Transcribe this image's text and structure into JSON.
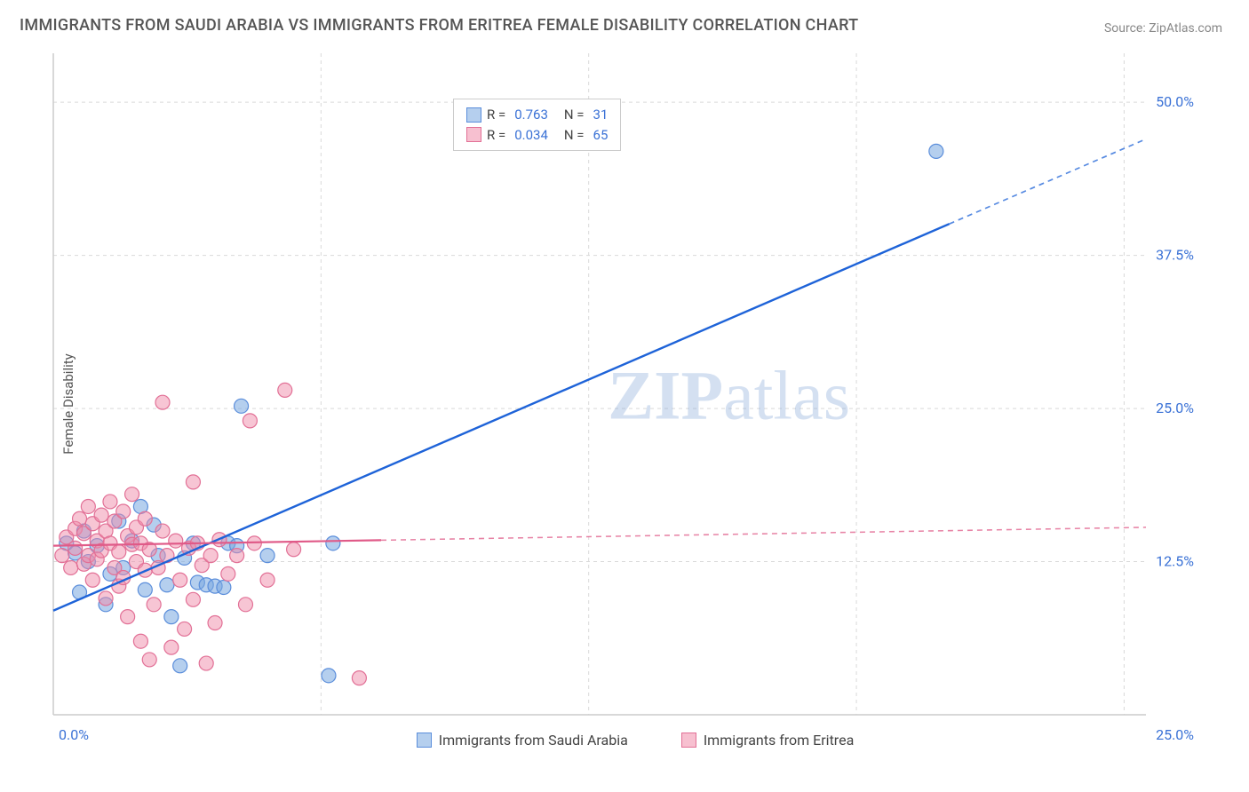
{
  "title": "IMMIGRANTS FROM SAUDI ARABIA VS IMMIGRANTS FROM ERITREA FEMALE DISABILITY CORRELATION CHART",
  "source": "Source: ZipAtlas.com",
  "ylabel": "Female Disability",
  "watermark": "ZIPatlas",
  "type": "scatter",
  "background_color": "#ffffff",
  "grid_color": "#d9d9d9",
  "axis_color": "#cccccc",
  "tick_color": "#3b72d6",
  "tick_fontsize": 16,
  "label_fontsize": 15,
  "title_fontsize": 18,
  "xlim": [
    0,
    25
  ],
  "ylim": [
    0,
    54
  ],
  "ytick_positions": [
    12.5,
    25.0,
    37.5,
    50.0
  ],
  "ytick_labels": [
    "12.5%",
    "25.0%",
    "37.5%",
    "50.0%"
  ],
  "xtick_positions": [
    0,
    25
  ],
  "xtick_labels": [
    "0.0%",
    "25.0%"
  ],
  "xgrid_rel": [
    0.245,
    0.49,
    0.735,
    0.98
  ],
  "stats": {
    "blue": {
      "R": "0.763",
      "N": "31"
    },
    "pink": {
      "R": "0.034",
      "N": "65"
    }
  },
  "series": [
    {
      "name": "Immigrants from Saudi Arabia",
      "marker_color": "rgba(120,168,224,0.55)",
      "marker_stroke": "#5b8edb",
      "marker_radius": 8,
      "line_color": "#1e63d8",
      "line_width": 2.4,
      "line_p1": [
        0.0,
        8.5
      ],
      "line_p2": [
        25.0,
        47.0
      ],
      "line_solid_xmax": 20.5,
      "points": [
        [
          0.3,
          14.0
        ],
        [
          0.5,
          13.2
        ],
        [
          0.7,
          15.0
        ],
        [
          0.6,
          10.0
        ],
        [
          0.8,
          12.5
        ],
        [
          1.0,
          13.8
        ],
        [
          1.2,
          9.0
        ],
        [
          1.3,
          11.5
        ],
        [
          1.5,
          15.8
        ],
        [
          1.6,
          12.0
        ],
        [
          1.8,
          14.2
        ],
        [
          2.0,
          17.0
        ],
        [
          2.1,
          10.2
        ],
        [
          2.3,
          15.5
        ],
        [
          2.4,
          13.0
        ],
        [
          2.6,
          10.6
        ],
        [
          2.7,
          8.0
        ],
        [
          2.9,
          4.0
        ],
        [
          3.0,
          12.8
        ],
        [
          3.2,
          14.0
        ],
        [
          3.3,
          10.8
        ],
        [
          3.5,
          10.6
        ],
        [
          3.7,
          10.5
        ],
        [
          3.9,
          10.4
        ],
        [
          4.0,
          14.0
        ],
        [
          4.2,
          13.8
        ],
        [
          4.3,
          25.2
        ],
        [
          4.9,
          13.0
        ],
        [
          6.3,
          3.2
        ],
        [
          6.4,
          14.0
        ],
        [
          20.2,
          46.0
        ]
      ]
    },
    {
      "name": "Immigrants from Eritrea",
      "marker_color": "rgba(240,140,170,0.50)",
      "marker_stroke": "#e27096",
      "marker_radius": 8,
      "line_color": "#e05a88",
      "line_width": 2.2,
      "line_p1": [
        0.0,
        13.8
      ],
      "line_p2": [
        25.0,
        15.3
      ],
      "line_solid_xmax": 7.5,
      "points": [
        [
          0.2,
          13.0
        ],
        [
          0.3,
          14.5
        ],
        [
          0.4,
          12.0
        ],
        [
          0.5,
          15.2
        ],
        [
          0.5,
          13.6
        ],
        [
          0.6,
          16.0
        ],
        [
          0.7,
          14.8
        ],
        [
          0.7,
          12.3
        ],
        [
          0.8,
          13.0
        ],
        [
          0.8,
          17.0
        ],
        [
          0.9,
          15.6
        ],
        [
          0.9,
          11.0
        ],
        [
          1.0,
          14.2
        ],
        [
          1.0,
          12.7
        ],
        [
          1.1,
          16.3
        ],
        [
          1.1,
          13.4
        ],
        [
          1.2,
          15.0
        ],
        [
          1.2,
          9.5
        ],
        [
          1.3,
          14.0
        ],
        [
          1.3,
          17.4
        ],
        [
          1.4,
          12.0
        ],
        [
          1.4,
          15.8
        ],
        [
          1.5,
          13.3
        ],
        [
          1.5,
          10.5
        ],
        [
          1.6,
          11.2
        ],
        [
          1.6,
          16.6
        ],
        [
          1.7,
          14.6
        ],
        [
          1.7,
          8.0
        ],
        [
          1.8,
          13.9
        ],
        [
          1.8,
          18.0
        ],
        [
          1.9,
          12.5
        ],
        [
          1.9,
          15.3
        ],
        [
          2.0,
          6.0
        ],
        [
          2.0,
          14.0
        ],
        [
          2.1,
          11.8
        ],
        [
          2.1,
          16.0
        ],
        [
          2.2,
          4.5
        ],
        [
          2.2,
          13.5
        ],
        [
          2.3,
          9.0
        ],
        [
          2.4,
          12.0
        ],
        [
          2.5,
          15.0
        ],
        [
          2.5,
          25.5
        ],
        [
          2.6,
          13.0
        ],
        [
          2.7,
          5.5
        ],
        [
          2.8,
          14.2
        ],
        [
          2.9,
          11.0
        ],
        [
          3.0,
          7.0
        ],
        [
          3.1,
          13.6
        ],
        [
          3.2,
          19.0
        ],
        [
          3.2,
          9.4
        ],
        [
          3.3,
          14.0
        ],
        [
          3.4,
          12.2
        ],
        [
          3.5,
          4.2
        ],
        [
          3.6,
          13.0
        ],
        [
          3.7,
          7.5
        ],
        [
          3.8,
          14.3
        ],
        [
          4.0,
          11.5
        ],
        [
          4.2,
          13.0
        ],
        [
          4.4,
          9.0
        ],
        [
          4.5,
          24.0
        ],
        [
          4.6,
          14.0
        ],
        [
          4.9,
          11.0
        ],
        [
          5.3,
          26.5
        ],
        [
          5.5,
          13.5
        ],
        [
          7.0,
          3.0
        ]
      ]
    }
  ],
  "bottom_legend": [
    {
      "label": "Immigrants from Saudi Arabia",
      "swatch": "blue"
    },
    {
      "label": "Immigrants from Eritrea",
      "swatch": "pink"
    }
  ]
}
